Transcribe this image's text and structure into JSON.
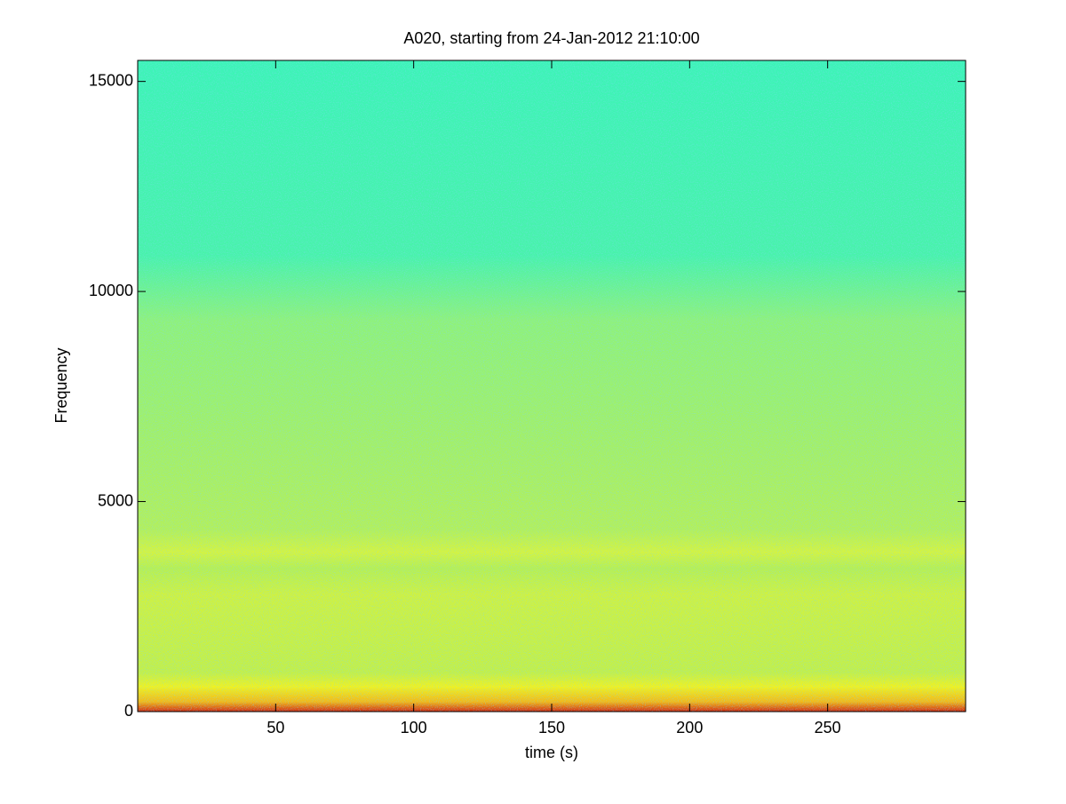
{
  "chart_data": {
    "type": "spectrogram",
    "title": "A020, starting from 24-Jan-2012 21:10:00",
    "xlabel": "time (s)",
    "ylabel": "Frequency",
    "xlim": [
      0,
      300
    ],
    "xticks": [
      50,
      100,
      150,
      200,
      250
    ],
    "ylim": [
      0,
      15500
    ],
    "yticks": [
      0,
      5000,
      10000,
      15000
    ]
  }
}
